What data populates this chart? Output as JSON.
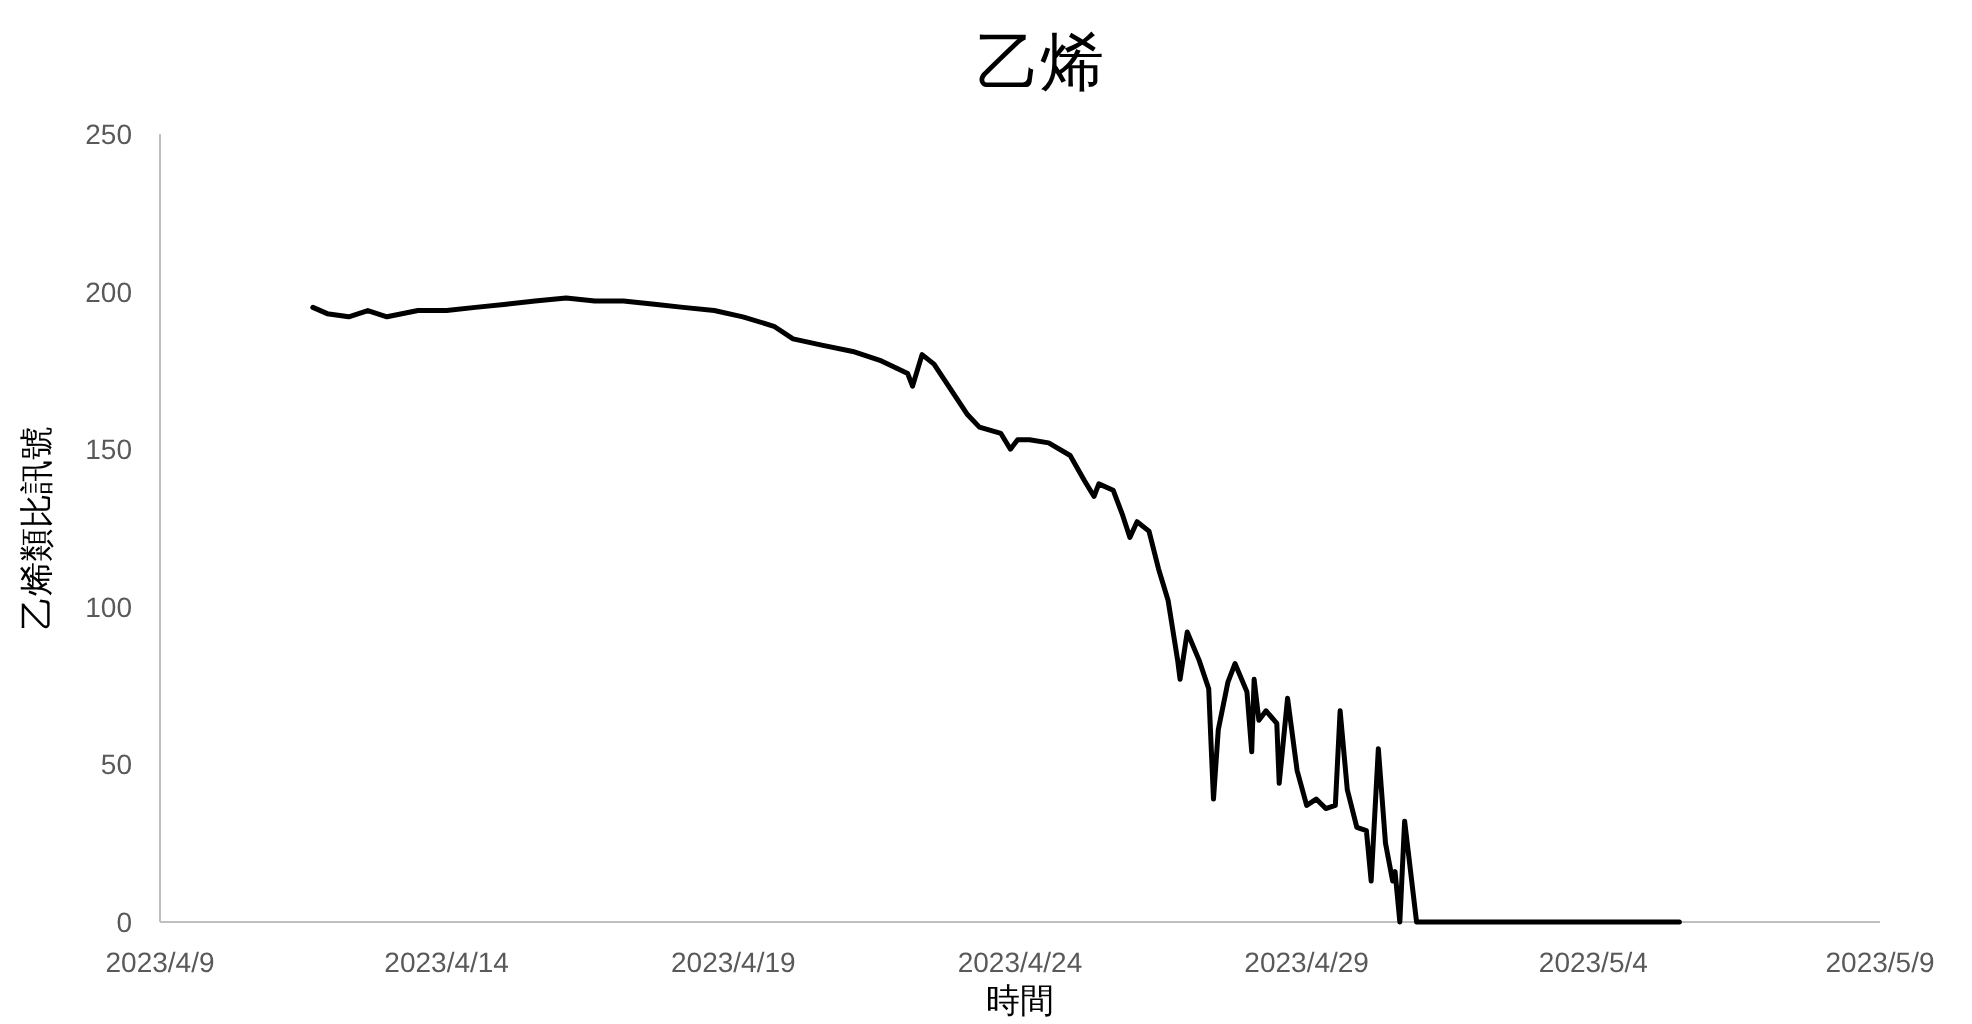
{
  "chart_data": {
    "type": "line",
    "title": "乙烯",
    "xlabel": "時間",
    "ylabel": "乙烯類比訊號",
    "xlim": [
      "2023-04-09",
      "2023-05-09"
    ],
    "xticks": [
      {
        "value": "2023-04-09",
        "label": "2023/4/9"
      },
      {
        "value": "2023-04-14",
        "label": "2023/4/14"
      },
      {
        "value": "2023-04-19",
        "label": "2023/4/19"
      },
      {
        "value": "2023-04-24",
        "label": "2023/4/24"
      },
      {
        "value": "2023-04-29",
        "label": "2023/4/29"
      },
      {
        "value": "2023-05-04",
        "label": "2023/5/4"
      },
      {
        "value": "2023-05-09",
        "label": "2023/5/9"
      }
    ],
    "ylim": [
      0,
      250
    ],
    "yticks": [
      0,
      50,
      100,
      150,
      200,
      250
    ],
    "grid": false,
    "marker": "none",
    "line_style": "solid",
    "series": [
      {
        "color": "#000000",
        "x": [
          "2023-04-11T16:00",
          "2023-04-11T22:00",
          "2023-04-12T07:00",
          "2023-04-12T15:00",
          "2023-04-12T23:00",
          "2023-04-13T12:00",
          "2023-04-14T00:00",
          "2023-04-14T12:00",
          "2023-04-15T01:00",
          "2023-04-15T13:00",
          "2023-04-16T02:00",
          "2023-04-16T14:00",
          "2023-04-17T02:00",
          "2023-04-17T15:00",
          "2023-04-18T03:00",
          "2023-04-18T16:00",
          "2023-04-19T04:00",
          "2023-04-19T17:00",
          "2023-04-20T01:00",
          "2023-04-20T13:00",
          "2023-04-21T02:00",
          "2023-04-21T14:00",
          "2023-04-22T01:00",
          "2023-04-22T03:00",
          "2023-04-22T07:00",
          "2023-04-22T12:00",
          "2023-04-22T19:00",
          "2023-04-23T02:00",
          "2023-04-23T07:00",
          "2023-04-23T16:00",
          "2023-04-23T20:00",
          "2023-04-23T23:00",
          "2023-04-24T04:00",
          "2023-04-24T12:00",
          "2023-04-24T21:00",
          "2023-04-25T03:00",
          "2023-04-25T07:00",
          "2023-04-25T09:00",
          "2023-04-25T15:00",
          "2023-04-25T19:00",
          "2023-04-25T22:00",
          "2023-04-26T01:00",
          "2023-04-26T06:00",
          "2023-04-26T10:00",
          "2023-04-26T14:00",
          "2023-04-26T18:00",
          "2023-04-26T19:00",
          "2023-04-26T22:00",
          "2023-04-27T03:00",
          "2023-04-27T07:00",
          "2023-04-27T08:00",
          "2023-04-27T09:00",
          "2023-04-27T11:00",
          "2023-04-27T15:00",
          "2023-04-27T18:00",
          "2023-04-27T23:00",
          "2023-04-28T01:00",
          "2023-04-28T02:00",
          "2023-04-28T04:00",
          "2023-04-28T07:00",
          "2023-04-28T11:30",
          "2023-04-28T12:30",
          "2023-04-28T16:00",
          "2023-04-28T20:00",
          "2023-04-29T00:00",
          "2023-04-29T04:00",
          "2023-04-29T08:00",
          "2023-04-29T12:00",
          "2023-04-29T14:00",
          "2023-04-29T17:00",
          "2023-04-29T21:00",
          "2023-04-30T01:00",
          "2023-04-30T03:00",
          "2023-04-30T06:00",
          "2023-04-30T09:00",
          "2023-04-30T12:00",
          "2023-04-30T13:00",
          "2023-04-30T15:00",
          "2023-04-30T17:00",
          "2023-04-30T22:00",
          "2023-05-05T12:00"
        ],
        "values": [
          195,
          193,
          192,
          194,
          192,
          194,
          194,
          195,
          196,
          197,
          198,
          197,
          197,
          196,
          195,
          194,
          192,
          189,
          185,
          183,
          181,
          178,
          174,
          170,
          180,
          177,
          169,
          161,
          157,
          155,
          150,
          153,
          153,
          152,
          148,
          140,
          135,
          139,
          137,
          129,
          122,
          127,
          124,
          112,
          102,
          83,
          77,
          92,
          83,
          74,
          56,
          39,
          61,
          76,
          82,
          73,
          54,
          77,
          64,
          67,
          63,
          44,
          71,
          48,
          37,
          39,
          36,
          37,
          67,
          42,
          30,
          29,
          13,
          55,
          25,
          13,
          16,
          0,
          32,
          0,
          0
        ]
      }
    ]
  }
}
